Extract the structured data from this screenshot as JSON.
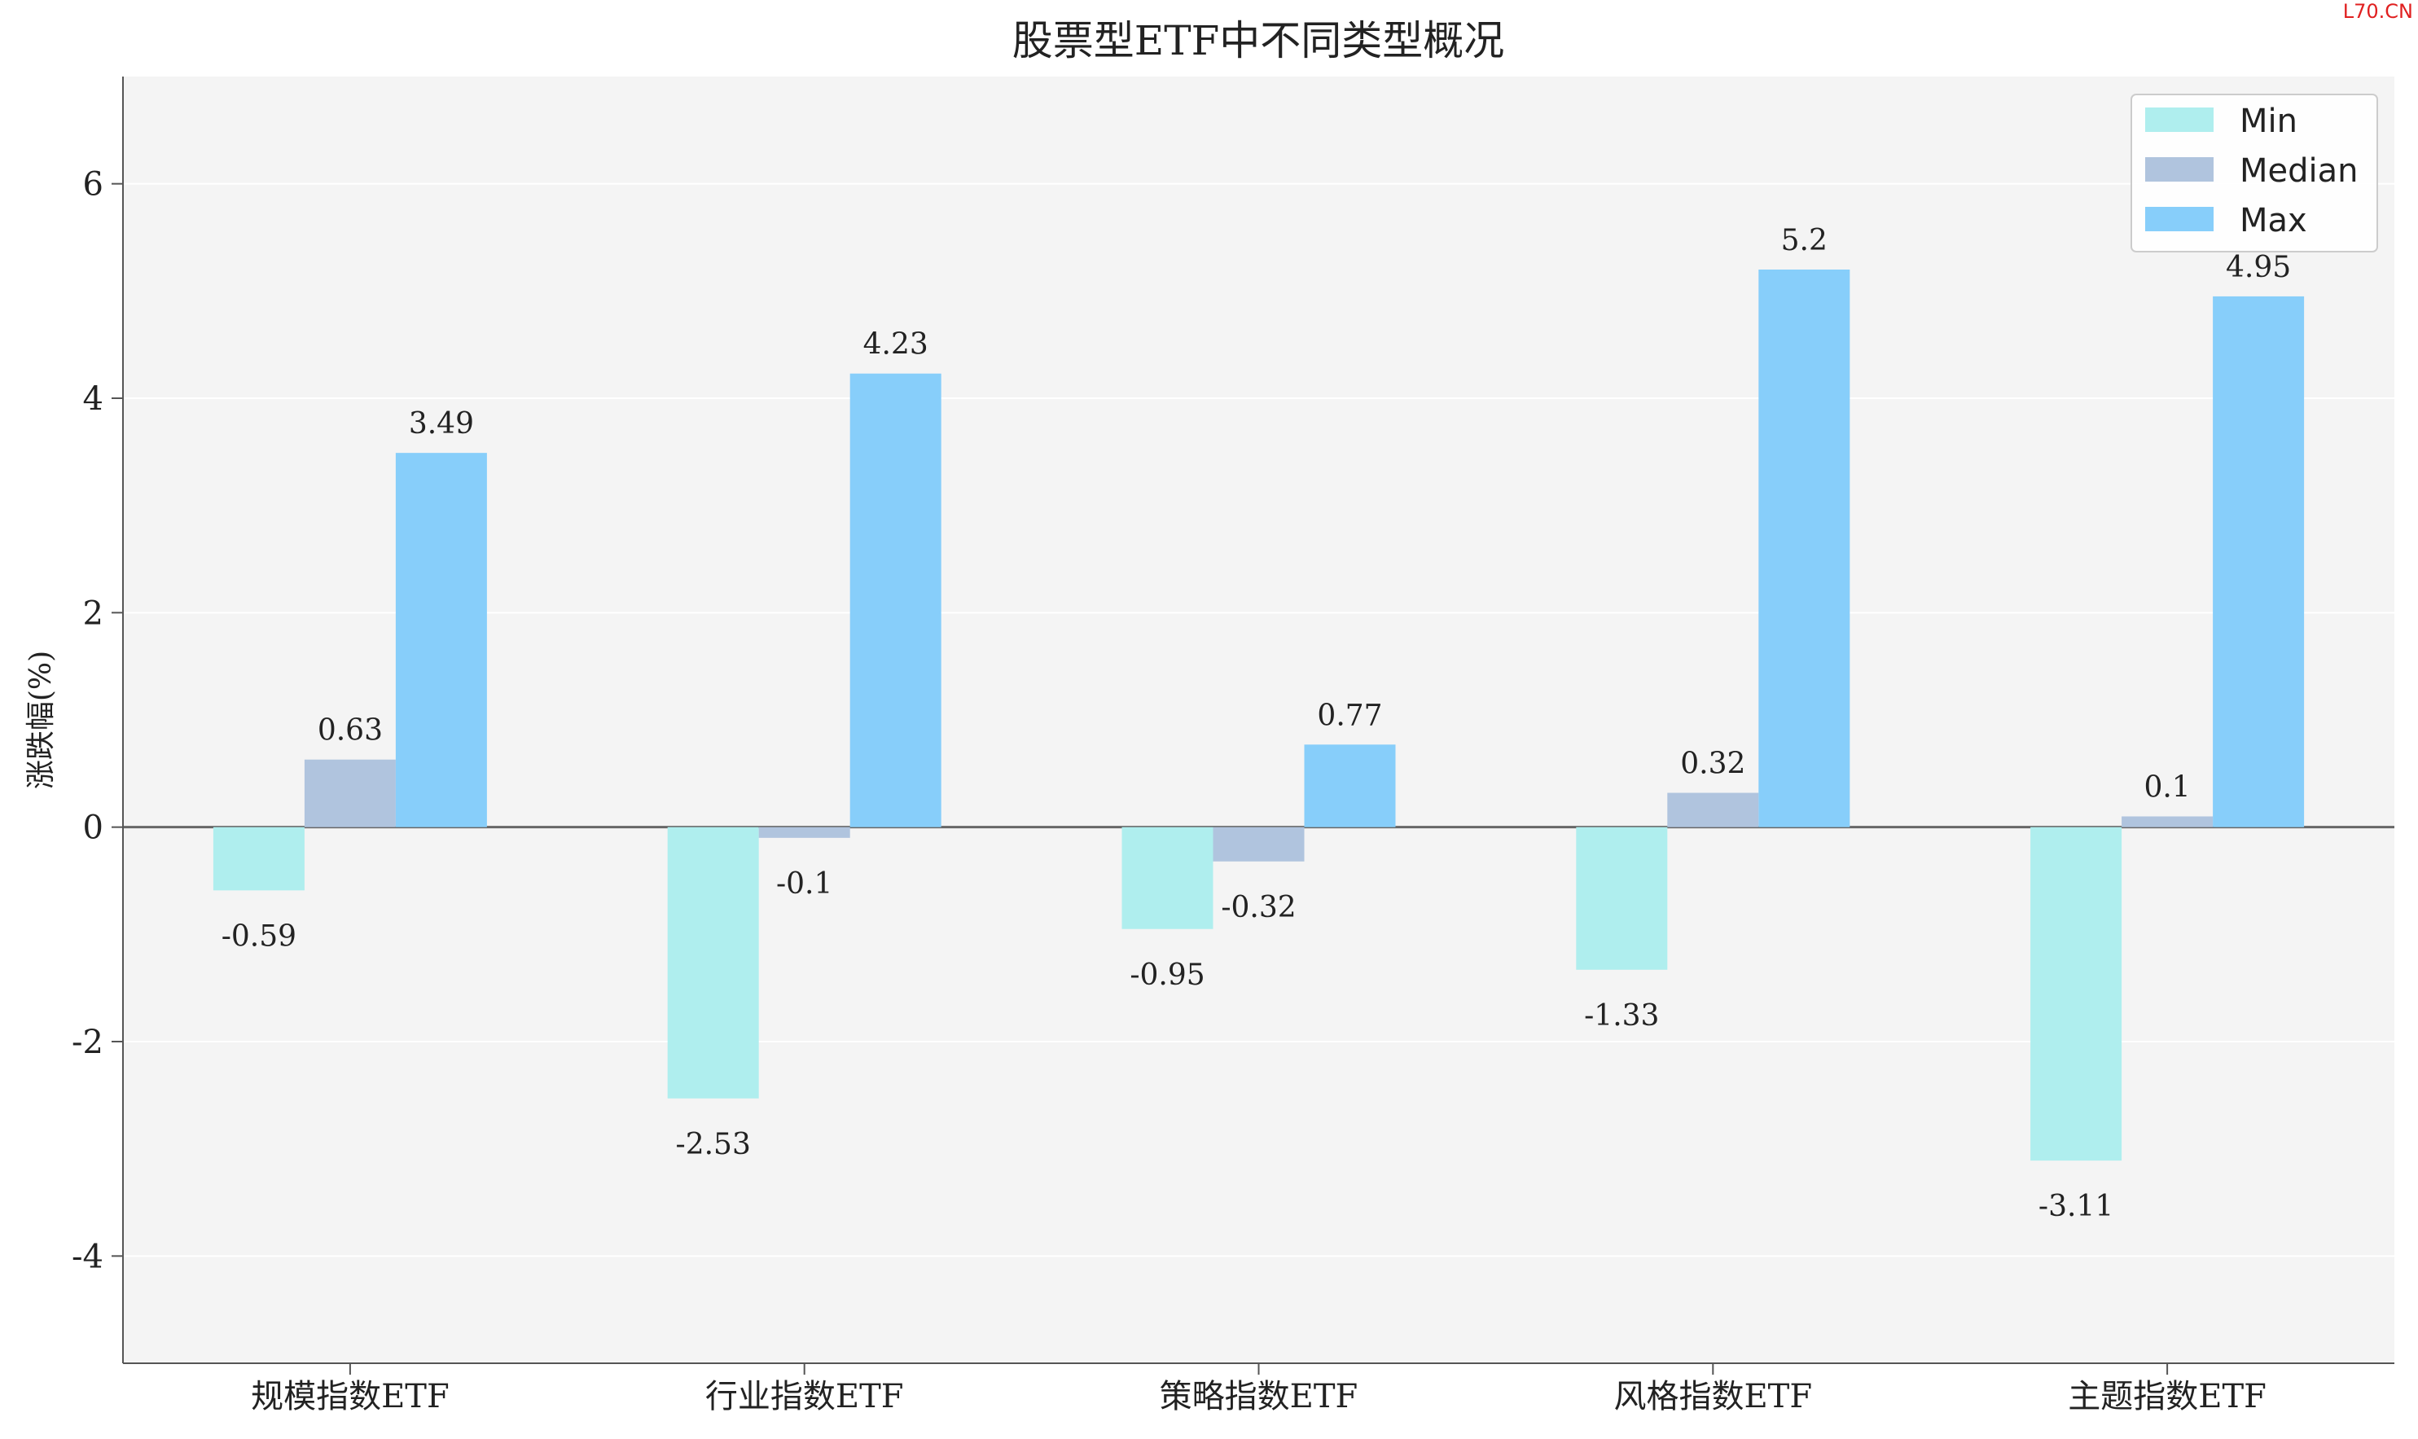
{
  "watermark": "L70.CN",
  "chart_data": {
    "type": "bar",
    "title": "股票型ETF中不同类型概况",
    "xlabel": "",
    "ylabel": "涨跌幅(%)",
    "categories": [
      "规模指数ETF",
      "行业指数ETF",
      "策略指数ETF",
      "风格指数ETF",
      "主题指数ETF"
    ],
    "series": [
      {
        "name": "Min",
        "color": "#afeeee",
        "values": [
          -0.59,
          -2.53,
          -0.95,
          -1.33,
          -3.11
        ],
        "labels": [
          "-0.59",
          "-2.53",
          "-0.95",
          "-1.33",
          "-3.11"
        ]
      },
      {
        "name": "Median",
        "color": "#b0c4de",
        "values": [
          0.63,
          -0.1,
          -0.32,
          0.32,
          0.1
        ],
        "labels": [
          "0.63",
          "-0.1",
          "-0.32",
          "0.32",
          "0.1"
        ]
      },
      {
        "name": "Max",
        "color": "#87cefa",
        "values": [
          3.49,
          4.23,
          0.77,
          5.2,
          4.95
        ],
        "labels": [
          "3.49",
          "4.23",
          "0.77",
          "5.2",
          "4.95"
        ]
      }
    ],
    "ylim": [
      -5,
      7
    ],
    "yticks": [
      -4,
      -2,
      0,
      2,
      4,
      6
    ],
    "ytick_labels": [
      "-4",
      "-2",
      "0",
      "2",
      "4",
      "6"
    ],
    "grid": "horizontal",
    "legend": "top-right",
    "background": "#f4f4f4",
    "zero_line_color": "#666666"
  }
}
